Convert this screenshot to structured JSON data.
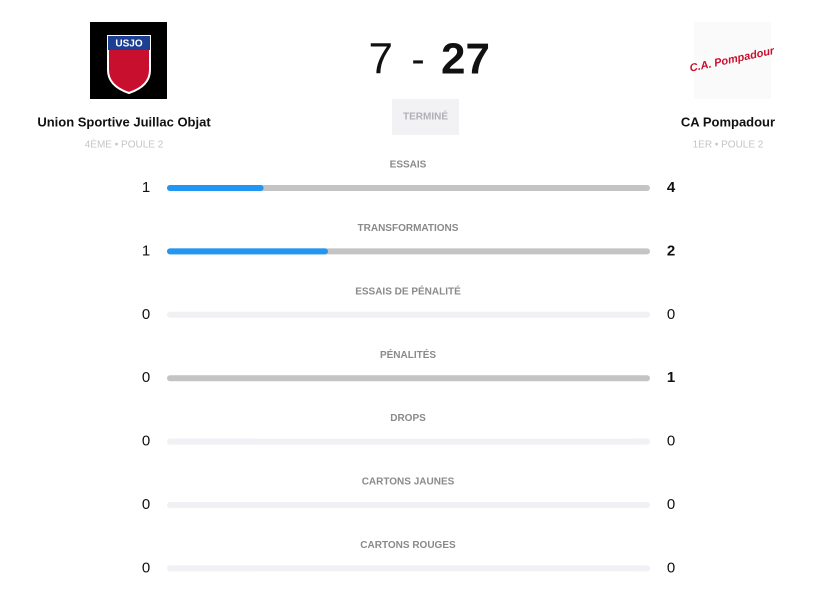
{
  "home": {
    "name": "Union Sportive Juillac Objat",
    "rank": "4ÈME • POULE 2",
    "logo_text": "USJO"
  },
  "away": {
    "name": "CA Pompadour",
    "rank": "1ER • POULE 2",
    "logo_text": "C.A. Pompadour"
  },
  "score": {
    "home": 7,
    "separator": "-",
    "away": 27
  },
  "status": "TERMINÉ",
  "stats": [
    {
      "label": "ESSAIS",
      "home": 1,
      "away": 4
    },
    {
      "label": "TRANSFORMATIONS",
      "home": 1,
      "away": 2
    },
    {
      "label": "ESSAIS DE PÉNALITÉ",
      "home": 0,
      "away": 0
    },
    {
      "label": "PÉNALITÉS",
      "home": 0,
      "away": 1
    },
    {
      "label": "DROPS",
      "home": 0,
      "away": 0
    },
    {
      "label": "CARTONS JAUNES",
      "home": 0,
      "away": 0
    },
    {
      "label": "CARTONS ROUGES",
      "home": 0,
      "away": 0
    }
  ]
}
